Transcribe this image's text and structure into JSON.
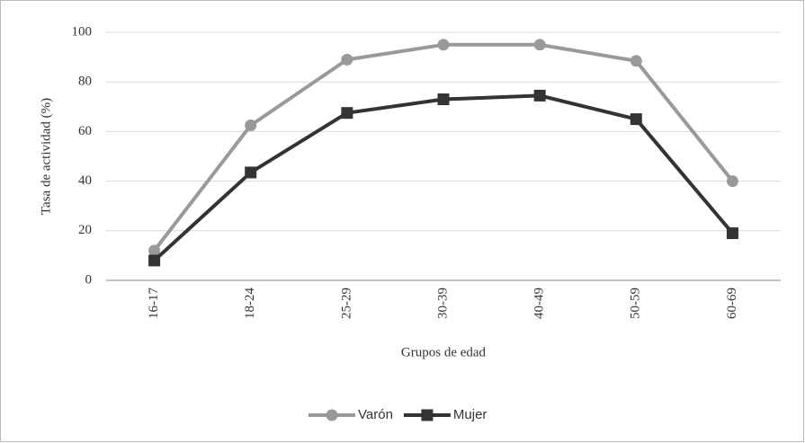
{
  "chart_data": {
    "type": "line",
    "x_label": "Grupos de edad",
    "y_label": "Tasa de actividad (%)",
    "categories": [
      "16-17",
      "18-24",
      "25-29",
      "30-39",
      "40-49",
      "50-59",
      "60-69"
    ],
    "series": [
      {
        "name": "Varón",
        "color": "#999999",
        "marker": "circle",
        "values": [
          12,
          62.5,
          89,
          95,
          95,
          88.5,
          40
        ]
      },
      {
        "name": "Mujer",
        "color": "#333333",
        "marker": "square",
        "values": [
          8,
          43.5,
          67.5,
          73,
          74.5,
          65,
          19
        ]
      }
    ],
    "ylim": [
      0,
      100
    ],
    "yticks": [
      0,
      20,
      40,
      60,
      80,
      100
    ],
    "grid": true,
    "legend": "bottom"
  }
}
